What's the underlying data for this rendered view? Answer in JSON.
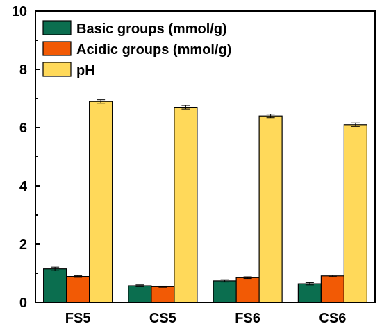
{
  "chart_data": {
    "type": "bar",
    "title": "",
    "xlabel": "",
    "ylabel": "",
    "categories": [
      "FS5",
      "CS5",
      "FS6",
      "CS6"
    ],
    "ylim": [
      0,
      10
    ],
    "yticks": [
      0,
      2,
      4,
      6,
      8,
      10
    ],
    "grid": false,
    "legend_position": "top-left",
    "series": [
      {
        "name": "Basic groups (mmol/g)",
        "color": "#0b6e4f",
        "values": [
          1.15,
          0.57,
          0.74,
          0.64
        ],
        "errors": [
          0.06,
          0.03,
          0.04,
          0.04
        ]
      },
      {
        "name": "Acidic groups (mmol/g)",
        "color": "#f25a05",
        "values": [
          0.89,
          0.54,
          0.85,
          0.91
        ],
        "errors": [
          0.03,
          0.02,
          0.03,
          0.03
        ]
      },
      {
        "name": "pH",
        "color": "#ffd95a",
        "values": [
          6.9,
          6.7,
          6.4,
          6.1
        ],
        "errors": [
          0.06,
          0.06,
          0.06,
          0.06
        ]
      }
    ]
  }
}
